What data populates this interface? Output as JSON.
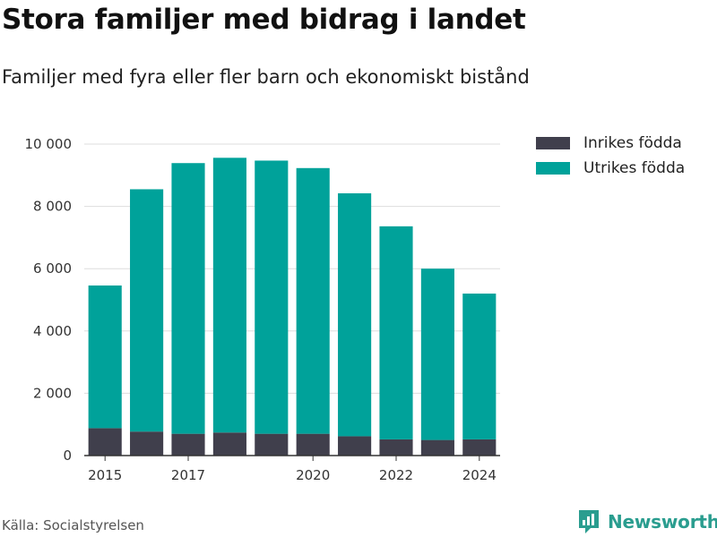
{
  "header": {
    "title": "Stora familjer med bidrag i landet",
    "subtitle": "Familjer med fyra eller fler barn och ekonomiskt bistånd"
  },
  "footer": {
    "source": "Källa: Socialstyrelsen",
    "brand": "Newsworthy"
  },
  "colors": {
    "inrikes": "#403f4c",
    "utrikes": "#00a29a",
    "grid": "#dddddd",
    "brand": "#2a9d8f"
  },
  "chart_data": {
    "type": "bar",
    "stacked": true,
    "categories": [
      "2015",
      "2016",
      "2017",
      "2018",
      "2019",
      "2020",
      "2021",
      "2022",
      "2023",
      "2024"
    ],
    "x_tick_labels": [
      "2015",
      "2017",
      "2020",
      "2022",
      "2024"
    ],
    "series": [
      {
        "name": "Inrikes födda",
        "color_key": "inrikes",
        "values": [
          880,
          770,
          700,
          740,
          700,
          700,
          620,
          520,
          500,
          520
        ]
      },
      {
        "name": "Utrikes födda",
        "color_key": "utrikes",
        "values": [
          4580,
          7780,
          8690,
          8820,
          8770,
          8530,
          7800,
          6840,
          5500,
          4680
        ]
      }
    ],
    "y_ticks": [
      0,
      2000,
      4000,
      6000,
      8000,
      10000
    ],
    "y_tick_labels": [
      "0",
      "2 000",
      "4 000",
      "6 000",
      "8 000",
      "10 000"
    ],
    "ylim": [
      0,
      10000
    ],
    "grid": true,
    "legend": "top-right",
    "title": "Stora familjer med bidrag i landet",
    "xlabel": "",
    "ylabel": ""
  }
}
